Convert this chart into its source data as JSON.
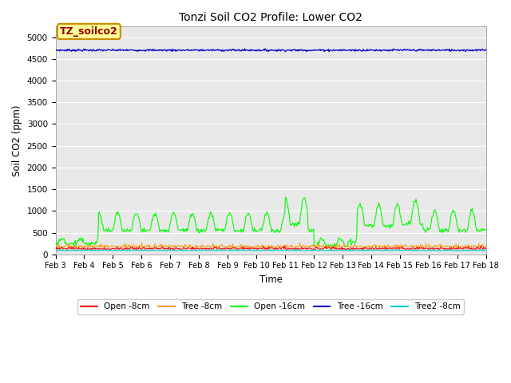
{
  "title": "Tonzi Soil CO2 Profile: Lower CO2",
  "xlabel": "Time",
  "ylabel": "Soil CO2 (ppm)",
  "ylim": [
    0,
    5250
  ],
  "yticks": [
    0,
    500,
    1000,
    1500,
    2000,
    2500,
    3000,
    3500,
    4000,
    4500,
    5000
  ],
  "n_points": 720,
  "tree16_base": 4700,
  "tree16_noise": 12,
  "open8_base": 115,
  "open8_noise": 25,
  "tree8_base": 160,
  "tree8_noise": 30,
  "tree2_8_base": 80,
  "tree2_8_noise": 15,
  "colors": {
    "open8": "#ff0000",
    "tree8": "#ff9900",
    "open16": "#00ff00",
    "tree16": "#0000cc",
    "tree2_8": "#00cccc"
  },
  "legend_labels": [
    "Open -8cm",
    "Tree -8cm",
    "Open -16cm",
    "Tree -16cm",
    "Tree2 -8cm"
  ],
  "annotation_text": "TZ_soilco2",
  "annotation_bg": "#ffff99",
  "annotation_fg": "#990000",
  "bg_color": "#e8e8e8",
  "fig_bg": "#ffffff",
  "xtick_labels": [
    "Feb 3",
    "Feb 4",
    "Feb 5",
    "Feb 6",
    "Feb 7",
    "Feb 8",
    "Feb 9",
    "Feb 10",
    "Feb 11",
    "Feb 12",
    "Feb 13",
    "Feb 14",
    "Feb 15",
    "Feb 16",
    "Feb 17",
    "Feb 18"
  ]
}
